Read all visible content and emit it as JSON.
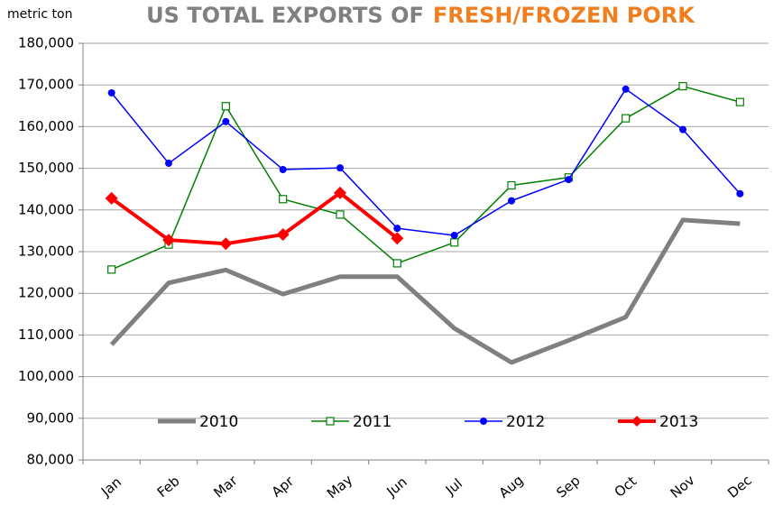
{
  "chart_data": {
    "type": "line",
    "title_parts": [
      {
        "text": "US TOTAL EXPORTS OF",
        "color": "#808080"
      },
      {
        "text": "FRESH/FROZEN PORK",
        "color": "#f07f20"
      }
    ],
    "y_axis_label": "metric ton",
    "categories": [
      "Jan",
      "Feb",
      "Mar",
      "Apr",
      "May",
      "Jun",
      "Jul",
      "Aug",
      "Sep",
      "Oct",
      "Nov",
      "Dec"
    ],
    "series": [
      {
        "name": "2010",
        "color": "#808080",
        "line_width": 5,
        "marker": "none",
        "values": [
          107700,
          122500,
          125600,
          119800,
          124000,
          124000,
          111600,
          103400,
          108700,
          114300,
          137600,
          136700
        ]
      },
      {
        "name": "2011",
        "color": "#008000",
        "line_width": 1.5,
        "marker": "square-open",
        "values": [
          125700,
          131700,
          164900,
          142600,
          138900,
          127200,
          132200,
          145900,
          147800,
          162000,
          169700,
          165900
        ]
      },
      {
        "name": "2012",
        "color": "#0000ff",
        "line_width": 1.5,
        "marker": "circle",
        "values": [
          168100,
          151200,
          161200,
          149700,
          150100,
          135600,
          133900,
          142200,
          147300,
          169000,
          159300,
          143900
        ]
      },
      {
        "name": "2013",
        "color": "#ff0000",
        "line_width": 4,
        "marker": "diamond",
        "values": [
          142800,
          132800,
          131900,
          134100,
          144100,
          133200,
          null,
          null,
          null,
          null,
          null,
          null
        ]
      }
    ],
    "ylim": [
      80000,
      180000
    ],
    "yticks": [
      {
        "value": 80000,
        "label": "80,000"
      },
      {
        "value": 90000,
        "label": "90,000"
      },
      {
        "value": 100000,
        "label": "100,000"
      },
      {
        "value": 110000,
        "label": "110,000"
      },
      {
        "value": 120000,
        "label": "120,000"
      },
      {
        "value": 130000,
        "label": "130,000"
      },
      {
        "value": 140000,
        "label": "140,000"
      },
      {
        "value": 150000,
        "label": "150,000"
      },
      {
        "value": 160000,
        "label": "160,000"
      },
      {
        "value": 170000,
        "label": "170,000"
      },
      {
        "value": 180000,
        "label": "180,000"
      }
    ],
    "grid": true,
    "legend_position": "bottom"
  }
}
